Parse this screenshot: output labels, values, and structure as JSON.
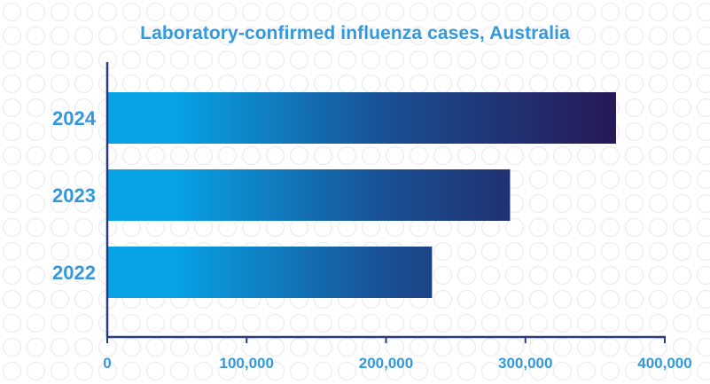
{
  "chart_data": {
    "type": "bar",
    "orientation": "horizontal",
    "title": "Laboratory-confirmed influenza cases, Australia",
    "categories": [
      "2024",
      "2023",
      "2022"
    ],
    "values": [
      365000,
      289000,
      233000
    ],
    "xlabel": "",
    "ylabel": "",
    "xlim": [
      0,
      400000
    ],
    "xticks": [
      0,
      100000,
      200000,
      300000,
      400000
    ],
    "xtick_labels": [
      "0",
      "100,000",
      "200,000",
      "300,000",
      "400,000"
    ],
    "grid": false,
    "legend": "none",
    "colors": {
      "text": "#3399dd",
      "axis": "#2b3a7a",
      "bar_gradient_start": "#07a3e6",
      "bar_gradient_mid": "#1a4f93",
      "bar_gradient_end": "#271856",
      "pattern": "#ececf1"
    }
  }
}
